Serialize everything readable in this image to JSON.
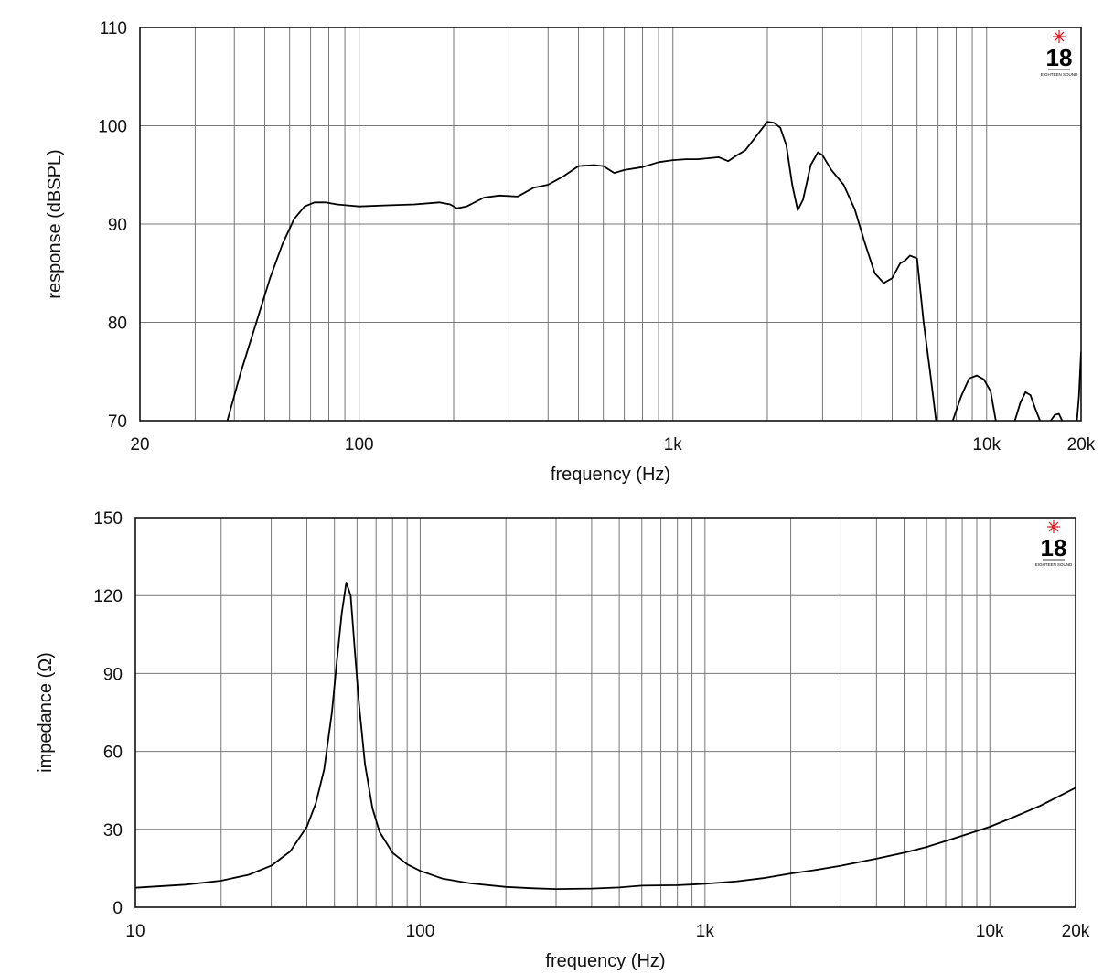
{
  "chart_data": [
    {
      "type": "line",
      "xscale": "log",
      "xlabel": "frequency (Hz)",
      "ylabel": "response (dBSPL)",
      "xlim": [
        20,
        20000
      ],
      "ylim": [
        70,
        110
      ],
      "grid": true,
      "x_ticks": [
        {
          "value": 20,
          "label": "20"
        },
        {
          "value": 100,
          "label": "100"
        },
        {
          "value": 1000,
          "label": "1k"
        },
        {
          "value": 10000,
          "label": "10k"
        },
        {
          "value": 20000,
          "label": "20k"
        }
      ],
      "y_ticks": [
        {
          "value": 70,
          "label": "70"
        },
        {
          "value": 80,
          "label": "80"
        },
        {
          "value": 90,
          "label": "90"
        },
        {
          "value": 100,
          "label": "100"
        },
        {
          "value": 110,
          "label": "110"
        }
      ],
      "logo": {
        "text": "18",
        "subtext": "EIGHTEEN SOUND",
        "accent": "#d8262e"
      },
      "series": [
        {
          "x": [
            38,
            42,
            47,
            52,
            57,
            62,
            67,
            72,
            78,
            85,
            100,
            120,
            150,
            180,
            195,
            205,
            220,
            250,
            280,
            320,
            360,
            400,
            450,
            500,
            560,
            600,
            650,
            700,
            800,
            900,
            1000,
            1100,
            1200,
            1300,
            1400,
            1500,
            1600,
            1700,
            1800,
            1900,
            2000,
            2100,
            2200,
            2300,
            2400,
            2500,
            2600,
            2750,
            2900,
            3000,
            3200,
            3500,
            3800,
            4100,
            4400,
            4700,
            5000,
            5300,
            5500,
            5700,
            6000,
            6300,
            6600,
            6900
          ],
          "values": [
            70,
            75,
            80,
            84.5,
            88,
            90.5,
            91.8,
            92.2,
            92.2,
            92.0,
            91.8,
            91.9,
            92.0,
            92.2,
            92.0,
            91.6,
            91.8,
            92.7,
            92.9,
            92.8,
            93.7,
            94.0,
            94.9,
            95.9,
            96.0,
            95.9,
            95.2,
            95.5,
            95.8,
            96.3,
            96.5,
            96.6,
            96.6,
            96.7,
            96.8,
            96.4,
            97.0,
            97.5,
            98.5,
            99.5,
            100.4,
            100.3,
            99.8,
            98.0,
            94.0,
            91.4,
            92.5,
            96.0,
            97.3,
            97.0,
            95.5,
            94.0,
            91.5,
            88.0,
            85.0,
            84.0,
            84.5,
            86.0,
            86.3,
            86.8,
            86.5,
            80.0,
            75.0,
            70.0
          ]
        },
        {
          "x": [
            7800,
            8300,
            8800,
            9300,
            9800,
            10300,
            10700
          ],
          "values": [
            70,
            72.5,
            74.3,
            74.6,
            74.2,
            73.0,
            70
          ]
        },
        {
          "x": [
            12300,
            12800,
            13300,
            13800,
            14300,
            14800
          ],
          "values": [
            70,
            71.8,
            72.9,
            72.6,
            71.2,
            70
          ]
        },
        {
          "x": [
            16000,
            16500,
            17000,
            17400
          ],
          "values": [
            70,
            70.6,
            70.7,
            70
          ]
        },
        {
          "x": [
            19400,
            19700,
            20000
          ],
          "values": [
            70,
            72.5,
            77
          ]
        }
      ]
    },
    {
      "type": "line",
      "xscale": "log",
      "xlabel": "frequency (Hz)",
      "ylabel": "impedance (Ω)",
      "xlim": [
        10,
        20000
      ],
      "ylim": [
        0,
        150
      ],
      "grid": true,
      "x_ticks": [
        {
          "value": 10,
          "label": "10"
        },
        {
          "value": 100,
          "label": "100"
        },
        {
          "value": 1000,
          "label": "1k"
        },
        {
          "value": 10000,
          "label": "10k"
        },
        {
          "value": 20000,
          "label": "20k"
        }
      ],
      "y_ticks": [
        {
          "value": 0,
          "label": "0"
        },
        {
          "value": 30,
          "label": "30"
        },
        {
          "value": 60,
          "label": "60"
        },
        {
          "value": 90,
          "label": "90"
        },
        {
          "value": 120,
          "label": "120"
        },
        {
          "value": 150,
          "label": "150"
        }
      ],
      "logo": {
        "text": "18",
        "subtext": "EIGHTEEN SOUND",
        "accent": "#d8262e"
      },
      "series": [
        {
          "x": [
            10,
            15,
            20,
            25,
            30,
            35,
            40,
            43,
            46,
            49,
            51,
            53,
            55,
            57,
            59,
            61,
            64,
            68,
            72,
            80,
            90,
            100,
            120,
            150,
            200,
            250,
            300,
            400,
            500,
            600,
            800,
            1000,
            1300,
            1600,
            2000,
            2500,
            3000,
            4000,
            5000,
            6000,
            7000,
            8000,
            10000,
            12000,
            15000,
            20000
          ],
          "values": [
            7.5,
            8.7,
            10.2,
            12.5,
            16.0,
            21.5,
            31.0,
            40.0,
            53.0,
            75.0,
            95.0,
            113.0,
            125.0,
            120.0,
            98.0,
            78.0,
            55.0,
            38.0,
            29.0,
            21.0,
            16.5,
            14.0,
            11.0,
            9.2,
            7.8,
            7.3,
            7.0,
            7.2,
            7.6,
            8.3,
            8.5,
            9.0,
            10.0,
            11.2,
            13.0,
            14.5,
            16.0,
            18.7,
            21.0,
            23.2,
            25.5,
            27.5,
            31.0,
            34.5,
            39.0,
            46.0
          ]
        }
      ]
    }
  ]
}
